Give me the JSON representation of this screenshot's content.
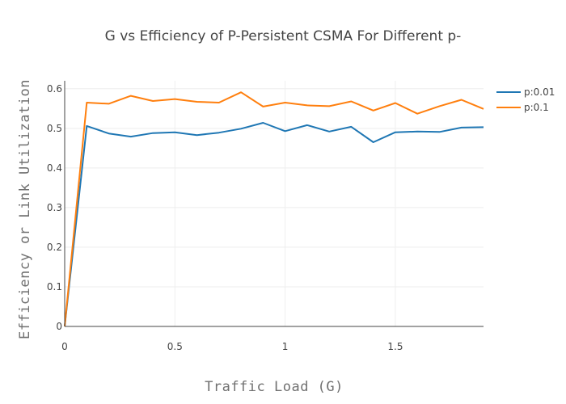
{
  "chart_data": {
    "type": "line",
    "title": "G vs Efficiency of P-Persistent CSMA For Different p-",
    "xlabel": "Traffic Load (G)",
    "ylabel": "Efficiency or Link Utilization",
    "xlim": [
      0,
      1.9
    ],
    "ylim": [
      0,
      0.62
    ],
    "xticks": [
      0,
      0.5,
      1,
      1.5
    ],
    "xtick_labels": [
      "0",
      "0.5",
      "1",
      "1.5"
    ],
    "yticks": [
      0,
      0.1,
      0.2,
      0.3,
      0.4,
      0.5,
      0.6
    ],
    "ytick_labels": [
      "0",
      "0.1",
      "0.2",
      "0.3",
      "0.4",
      "0.5",
      "0.6"
    ],
    "grid": true,
    "legend_position": "top-right",
    "x": [
      0,
      0.1,
      0.2,
      0.3,
      0.4,
      0.5,
      0.6,
      0.7,
      0.8,
      0.9,
      1.0,
      1.1,
      1.2,
      1.3,
      1.4,
      1.5,
      1.6,
      1.7,
      1.8,
      1.9
    ],
    "series": [
      {
        "name": "p:0.01",
        "color": "#1f77b4",
        "values": [
          0,
          0.506,
          0.487,
          0.479,
          0.488,
          0.49,
          0.483,
          0.489,
          0.499,
          0.514,
          0.493,
          0.508,
          0.492,
          0.504,
          0.465,
          0.49,
          0.492,
          0.491,
          0.502,
          0.503
        ]
      },
      {
        "name": "p:0.1",
        "color": "#ff7f0e",
        "values": [
          0,
          0.565,
          0.562,
          0.582,
          0.569,
          0.574,
          0.567,
          0.565,
          0.591,
          0.555,
          0.565,
          0.558,
          0.556,
          0.568,
          0.545,
          0.564,
          0.537,
          0.556,
          0.572,
          0.549
        ]
      }
    ]
  }
}
